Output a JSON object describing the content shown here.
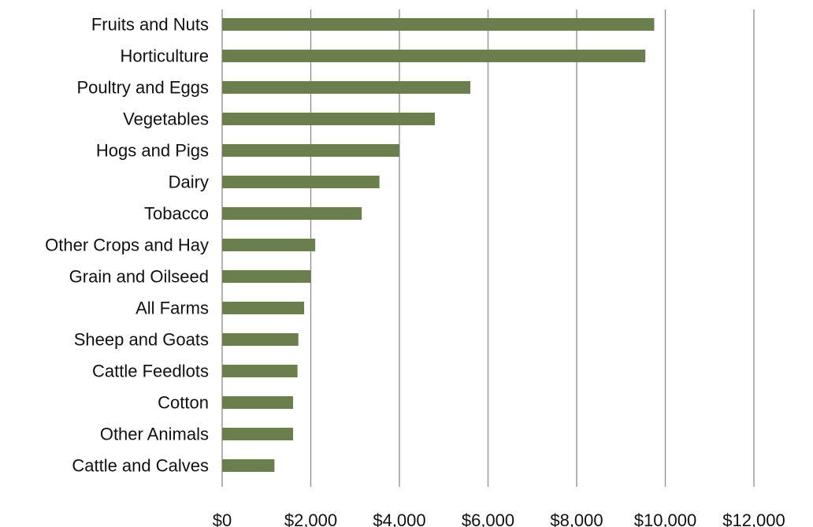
{
  "chart_data": {
    "type": "bar",
    "orientation": "horizontal",
    "title": "",
    "xlabel": "",
    "ylabel": "",
    "categories": [
      "Fruits and Nuts",
      "Horticulture",
      "Poultry and Eggs",
      "Vegetables",
      "Hogs and Pigs",
      "Dairy",
      "Tobacco",
      "Other Crops and Hay",
      "Grain and Oilseed",
      "All Farms",
      "Sheep and Goats",
      "Cattle Feedlots",
      "Cotton",
      "Other Animals",
      "Cattle and Calves"
    ],
    "values": [
      9750,
      9550,
      5600,
      4800,
      4000,
      3550,
      3150,
      2100,
      2000,
      1850,
      1720,
      1700,
      1600,
      1600,
      1180
    ],
    "xlim": [
      0,
      12000
    ],
    "x_ticks": [
      0,
      2000,
      4000,
      6000,
      8000,
      10000,
      12000
    ],
    "x_tick_labels": [
      "$0",
      "$2,000",
      "$4,000",
      "$6,000",
      "$8,000",
      "$10,000",
      "$12,000"
    ],
    "grid": true,
    "legend": "none",
    "bar_color": "#6b7f4e"
  }
}
